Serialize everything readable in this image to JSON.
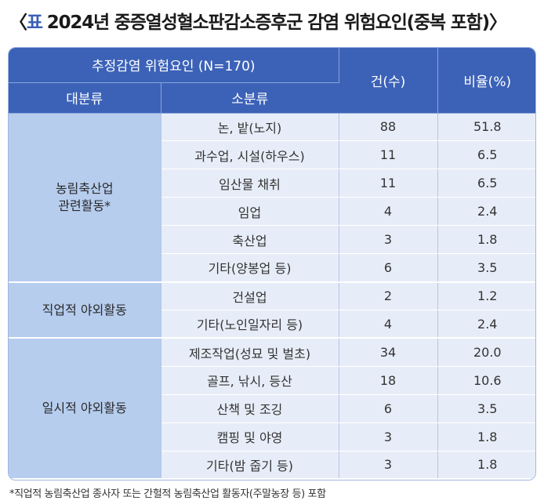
{
  "title": {
    "open_bracket": "〈",
    "label": "표",
    "text": "2024년 중증열성혈소판감소증후군 감염 위험요인(중복 포함)",
    "close_bracket": "〉"
  },
  "table": {
    "header_top": "추정감염 위험요인 (N=170)",
    "header_major": "대분류",
    "header_minor": "소분류",
    "header_count": "건(수)",
    "header_ratio": "비율(%)",
    "groups": [
      {
        "category": "농림축산업\n관련활동*",
        "rows": [
          {
            "sub": "논, 밭(노지)",
            "count": "88",
            "ratio": "51.8"
          },
          {
            "sub": "과수업, 시설(하우스)",
            "count": "11",
            "ratio": "6.5"
          },
          {
            "sub": "임산물 채취",
            "count": "11",
            "ratio": "6.5"
          },
          {
            "sub": "임업",
            "count": "4",
            "ratio": "2.4"
          },
          {
            "sub": "축산업",
            "count": "3",
            "ratio": "1.8"
          },
          {
            "sub": "기타(양봉업 등)",
            "count": "6",
            "ratio": "3.5"
          }
        ]
      },
      {
        "category": "직업적 야외활동",
        "rows": [
          {
            "sub": "건설업",
            "count": "2",
            "ratio": "1.2"
          },
          {
            "sub": "기타(노인일자리 등)",
            "count": "4",
            "ratio": "2.4"
          }
        ]
      },
      {
        "category": "일시적 야외활동",
        "rows": [
          {
            "sub": "제조작업(성묘 및 벌초)",
            "count": "34",
            "ratio": "20.0"
          },
          {
            "sub": "골프, 낚시, 등산",
            "count": "18",
            "ratio": "10.6"
          },
          {
            "sub": "산책 및 조깅",
            "count": "6",
            "ratio": "3.5"
          },
          {
            "sub": "캠핑 및 야영",
            "count": "3",
            "ratio": "1.8"
          },
          {
            "sub": "기타(밤 줍기 등)",
            "count": "3",
            "ratio": "1.8"
          }
        ]
      }
    ]
  },
  "footnote": "*직업적 농림축산업 종사자 또는 간헐적 농림축산업 활동자(주말농장 등) 포함",
  "colors": {
    "header_bg": "#3c62b8",
    "category_bg": "#b6cdee",
    "cell_bg": "#e7edf8",
    "accent": "#3a5fb6"
  }
}
